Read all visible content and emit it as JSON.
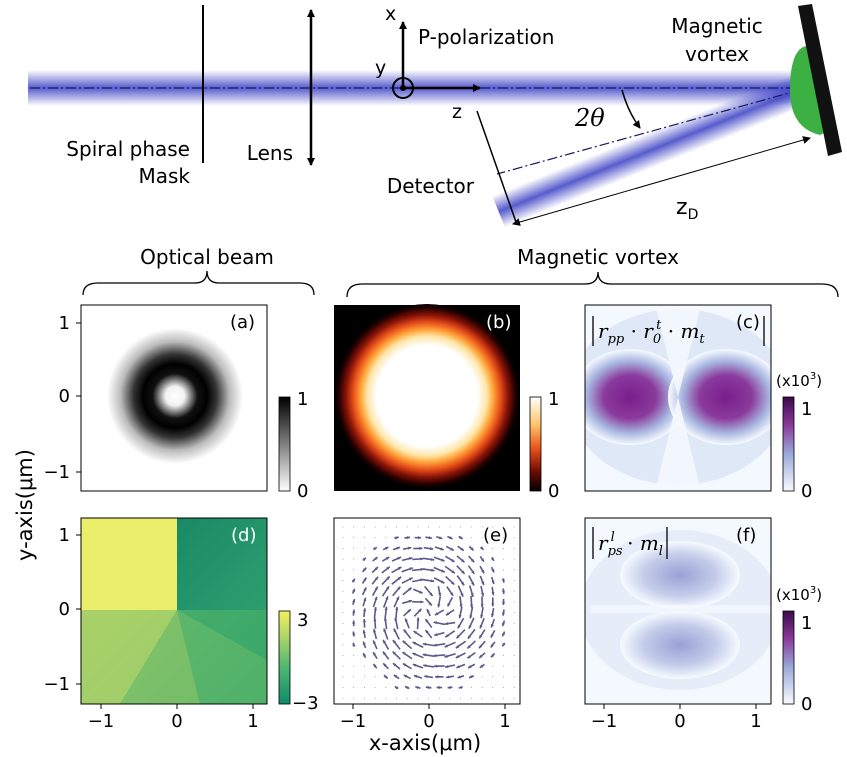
{
  "setup": {
    "spiral_label_1": "Spiral phase",
    "spiral_label_2": "Mask",
    "lens_label": "Lens",
    "x_axis": "x",
    "y_axis": "y",
    "z_axis": "z",
    "polarization": "P-polarization",
    "vortex_label_1": "Magnetic",
    "vortex_label_2": "vortex",
    "angle": "2θ",
    "detector": "Detector",
    "distance": "z",
    "distance_sub": "D",
    "beam_color": "#3a3fc4",
    "vortex_color": "#3cb043"
  },
  "section_labels": {
    "optical": "Optical beam",
    "magnetic": "Magnetic vortex"
  },
  "axes": {
    "xlabel": "x-axis(μm)",
    "ylabel": "y-axis(μm)",
    "ticks": [
      "−1",
      "0",
      "1"
    ]
  },
  "panels": {
    "a": {
      "tag": "(a)",
      "cb_top": "1",
      "cb_bottom": "0"
    },
    "b": {
      "tag": "(b)",
      "cb_top": "1",
      "cb_bottom": "0"
    },
    "c": {
      "tag": "(c)",
      "cb_top": "1",
      "cb_bottom": "0",
      "scale": "(x10",
      "scale_exp": "3",
      "scale_close": ")",
      "formula_r": "r",
      "formula_sub1": "pp",
      "formula_dot": " · ",
      "formula_r0": "r",
      "formula_sub0": "0",
      "formula_sup0": "t",
      "formula_m": "m",
      "formula_subm": "t"
    },
    "d": {
      "tag": "(d)",
      "cb_top": "3",
      "cb_bottom": "−3"
    },
    "e": {
      "tag": "(e)"
    },
    "f": {
      "tag": "(f)",
      "cb_top": "1",
      "cb_bottom": "0",
      "scale": "(x10",
      "scale_exp": "3",
      "scale_close": ")",
      "formula_r": "r",
      "formula_sub1": "ps",
      "formula_sup1": "l",
      "formula_dot": " · ",
      "formula_m": "m",
      "formula_subm": "l"
    }
  }
}
